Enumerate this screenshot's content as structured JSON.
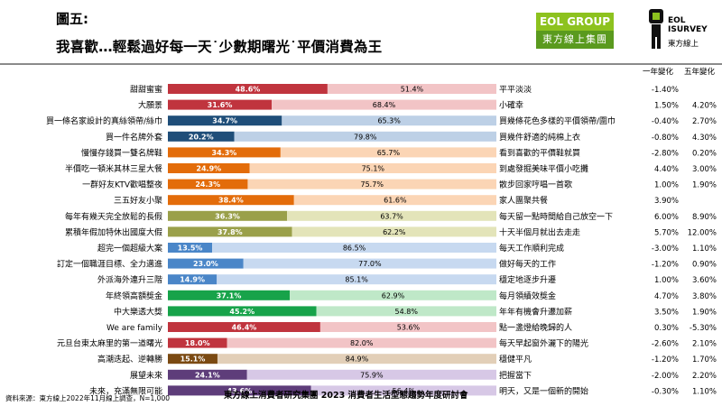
{
  "figure_label": "圖五:",
  "headline": "我喜歡…輕鬆過好每一天˙少數期曙光˙平價消費為王",
  "logo_eol": {
    "top": "EOL GROUP",
    "bottom": "東方線上集團"
  },
  "logo_survey": {
    "line1": "EOL",
    "line2": "ISURVEY",
    "line3": "東方線上"
  },
  "columns": {
    "yoy": "一年變化",
    "five_year": "五年變化"
  },
  "source_note": "資料來源：東方線上2022年11月線上調查，N=1,000",
  "footer_title": "東方線上消費者研究集團 2023 消費者生活型態趨勢年度研討會",
  "chart_data": {
    "type": "bar",
    "orientation": "horizontal-stacked-100",
    "left_categories": [
      "甜甜蜜蜜",
      "大願景",
      "買一條名家設計的真絲領帶/絲巾",
      "買一件名牌外套",
      "慢慢存錢買一雙名牌鞋",
      "半價吃一頓米其林三星大餐",
      "一群好友KTV歡唱整夜",
      "三五好友小聚",
      "每年有幾天完全放鬆的長假",
      "累積年假加特休出國度大假",
      "超完一個超級大案",
      "訂定一個職涯目標、全力邁進",
      "外派海外連升三階",
      "年終領高額獎金",
      "中大樂透大獎",
      "We are family",
      "元旦台東太麻里的第一道曙光",
      "高潮迭起、逆轉勝",
      "展望未來",
      "未來，充滿無限可能"
    ],
    "right_categories": [
      "平平淡淡",
      "小確幸",
      "買幾條花色多樣的平價領帶/圍巾",
      "買幾件舒適的純棉上衣",
      "看到喜歡的平價鞋就買",
      "到處發掘美味平價小吃攤",
      "散步回家哼唱一首歌",
      "家人團聚共餐",
      "每天留一點時間給自己放空一下",
      "十天半個月就出去走走",
      "每天工作順利完成",
      "做好每天的工作",
      "穩定地逐步升遷",
      "每月領績效獎金",
      "年年有機會升遷加薪",
      "點一盞燈給晚歸的人",
      "每天早起窗外灑下的陽光",
      "穩健平凡",
      "把握當下",
      "明天，又是一個新的開始"
    ],
    "left_values": [
      48.6,
      31.6,
      34.7,
      20.2,
      34.3,
      24.9,
      24.3,
      38.4,
      36.3,
      37.8,
      13.5,
      23.0,
      14.9,
      37.1,
      45.2,
      46.4,
      18.0,
      15.1,
      24.1,
      43.6
    ],
    "right_values": [
      51.4,
      68.4,
      65.3,
      79.8,
      65.7,
      75.1,
      75.7,
      61.6,
      63.7,
      62.2,
      86.5,
      77.0,
      85.1,
      62.9,
      54.8,
      53.6,
      82.0,
      84.9,
      75.9,
      56.4
    ],
    "left_labels": [
      "48.6%",
      "31.6%",
      "34.7%",
      "20.2%",
      "34.3%",
      "24.9%",
      "24.3%",
      "38.4%",
      "36.3%",
      "37.8%",
      "13.5%",
      "23.0%",
      "14.9%",
      "37.1%",
      "45.2%",
      "46.4%",
      "18.0%",
      "15.1%",
      "24.1%",
      "43.6%"
    ],
    "right_labels": [
      "51.4%",
      "68.4%",
      "65.3%",
      "79.8%",
      "65.7%",
      "75.1%",
      "75.7%",
      "61.6%",
      "63.7%",
      "62.2%",
      "86.5%",
      "77.0%",
      "85.1%",
      "62.9%",
      "54.8%",
      "53.6%",
      "82.0%",
      "84.9%",
      "75.9%",
      "56.4%"
    ],
    "yoy_change": [
      "-1.40%",
      "1.50%",
      "-0.40%",
      "-0.80%",
      "-2.80%",
      "4.40%",
      "1.00%",
      "3.90%",
      "6.00%",
      "5.70%",
      "-3.00%",
      "-1.20%",
      "1.00%",
      "4.70%",
      "3.50%",
      "0.30%",
      "-2.60%",
      "-1.20%",
      "-2.00%",
      "-0.30%"
    ],
    "five_year_change": [
      "",
      "4.20%",
      "2.70%",
      "4.30%",
      "0.20%",
      "3.00%",
      "1.90%",
      "",
      "8.90%",
      "12.00%",
      "1.10%",
      "0.90%",
      "3.60%",
      "3.80%",
      "1.90%",
      "-5.30%",
      "2.10%",
      "1.70%",
      "2.20%",
      "1.10%"
    ],
    "colors": {
      "left": [
        "#c0343e",
        "#c0343e",
        "#1f4e79",
        "#1f4e79",
        "#e36c0a",
        "#e36c0a",
        "#e36c0a",
        "#e36c0a",
        "#9aa04a",
        "#9aa04a",
        "#4a86c8",
        "#4a86c8",
        "#4a86c8",
        "#17a34a",
        "#17a34a",
        "#c0343e",
        "#c0343e",
        "#7b4a12",
        "#5e3d7a",
        "#5e3d7a"
      ],
      "right": [
        "#f2c4c6",
        "#f2c4c6",
        "#bdd0e6",
        "#bdd0e6",
        "#fbd5b5",
        "#fbd5b5",
        "#fbd5b5",
        "#fbd5b5",
        "#e3e4b9",
        "#e3e4b9",
        "#c7d9f0",
        "#c7d9f0",
        "#c7d9f0",
        "#bfe8c8",
        "#bfe8c8",
        "#f2c4c6",
        "#f2c4c6",
        "#e2cfb8",
        "#d7c8e6",
        "#d7c8e6"
      ]
    },
    "xlim": [
      0,
      100
    ]
  }
}
